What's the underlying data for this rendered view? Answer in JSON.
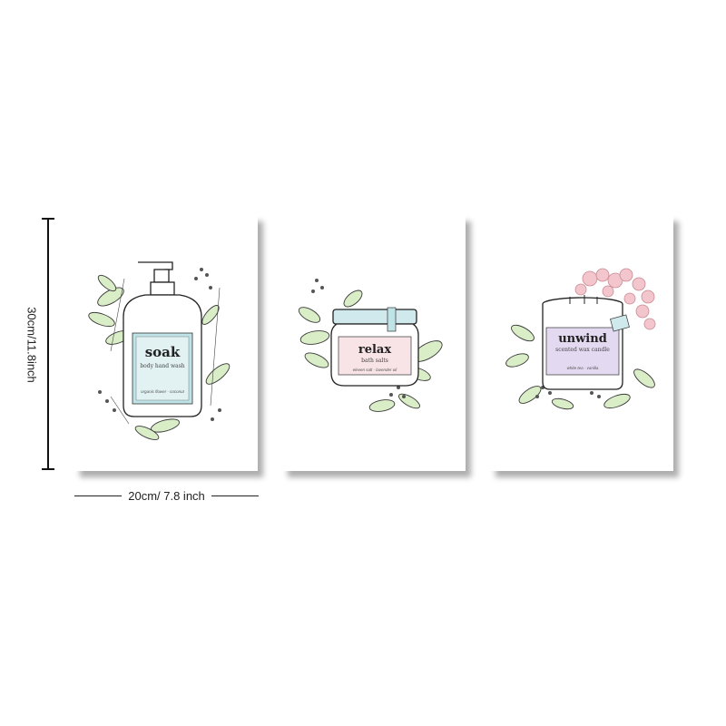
{
  "dimensions": {
    "height_label": "30cm/11.8inch",
    "width_label": "20cm/ 7.8 inch"
  },
  "prints": [
    {
      "title": "soak",
      "subtitle": "body hand wash",
      "footer": "organic flower · coconut"
    },
    {
      "title": "relax",
      "subtitle": "bath salts",
      "footer": "eleven salt · lavender oil"
    },
    {
      "title": "unwind",
      "subtitle": "scented wax candle",
      "footer": "white tea · vanilla"
    }
  ],
  "colors": {
    "leaf": "#d9edc7",
    "soak_label": "#bfe3e6",
    "relax_label": "#f8e3e6",
    "unwind_label": "#e3d9f0",
    "flower": "#f3c6cd"
  }
}
